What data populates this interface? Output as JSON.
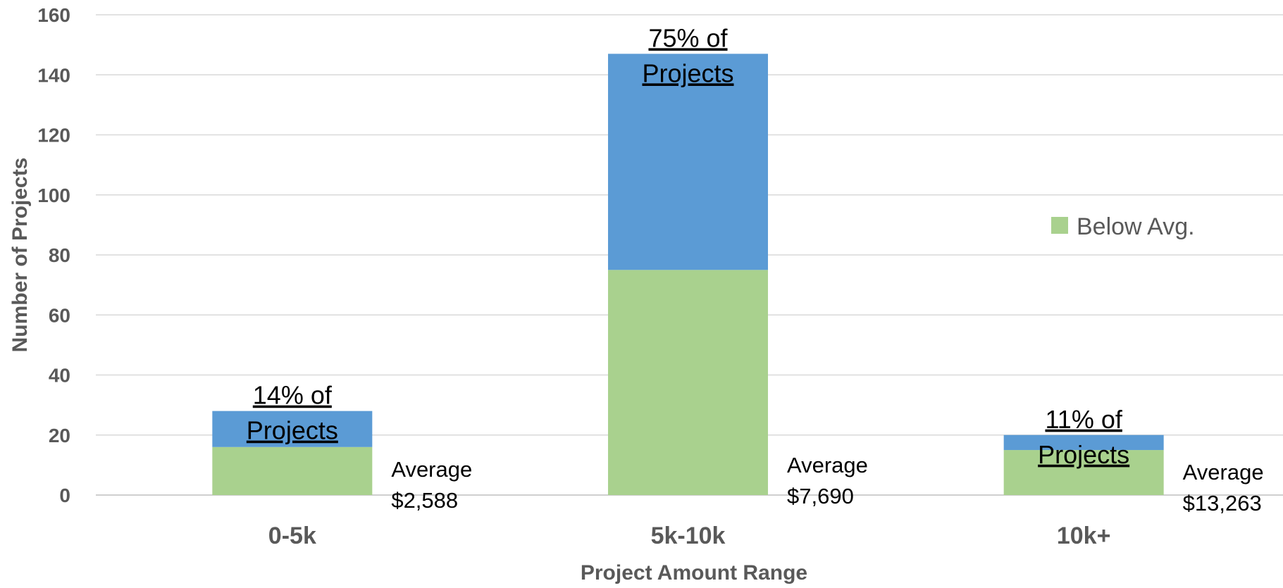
{
  "chart_data": {
    "type": "bar",
    "stacked": true,
    "title": "",
    "xlabel": "Project Amount Range",
    "ylabel": "Number of Projects",
    "ylim": [
      0,
      160
    ],
    "yticks": [
      0,
      20,
      40,
      60,
      80,
      100,
      120,
      140,
      160
    ],
    "categories": [
      "0-5k",
      "5k-10k",
      "10k+"
    ],
    "series": [
      {
        "name": "Below Avg.",
        "color": "#a9d18e",
        "values": [
          16,
          75,
          15
        ]
      },
      {
        "name": "",
        "color": "#5b9bd5",
        "values": [
          12,
          72,
          5
        ]
      }
    ],
    "grid": true,
    "legend": {
      "position": "right",
      "entries": [
        "Below Avg."
      ]
    },
    "annotations": [
      {
        "category": "0-5k",
        "share_lines": [
          "14% of",
          "Projects"
        ],
        "average_lines": [
          "Average",
          "$2,588"
        ]
      },
      {
        "category": "5k-10k",
        "share_lines": [
          "75% of",
          "Projects"
        ],
        "average_lines": [
          "Average",
          "$7,690"
        ]
      },
      {
        "category": "10k+",
        "share_lines": [
          "11% of",
          "Projects"
        ],
        "average_lines": [
          "Average",
          "$13,263"
        ]
      }
    ]
  }
}
